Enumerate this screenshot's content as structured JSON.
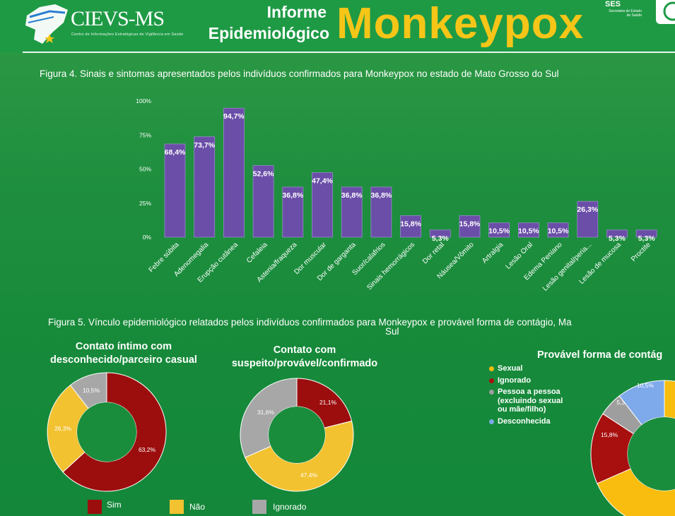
{
  "header": {
    "brand": "CIEVS-MS",
    "brand_subtitle": "Centro de Informações Estratégicas de Vigilância em Saúde",
    "informe_line1": "Informe",
    "informe_line2": "Epidemiológico",
    "title": "Monkeypox",
    "ses": "SES",
    "ses_line1": "Secretaria de Estado",
    "ses_line2": "de Saúde"
  },
  "figure4": {
    "caption": "Figura 4. Sinais e sintomas apresentados pelos indivíduos confirmados para  Monkeypox no estado de Mato Grosso do Sul"
  },
  "figure5": {
    "caption_line1": "Figura 5. Vínculo epidemiológico relatados  pelos indivíduos confirmados para Monkeypox e provável forma de contágio,  Ma",
    "caption_line2": "Sul",
    "panel1_title_line1": "Contato íntimo com",
    "panel1_title_line2": "desconhecido/parceiro casual",
    "panel2_title_line1": "Contato com",
    "panel2_title_line2": "suspeito/provável/confirmado",
    "panel3_title": "Provável forma de contág"
  },
  "colors": {
    "bar": "#6a4ea8",
    "sim": "#9c0e0e",
    "nao": "#f2c230",
    "ignorado": "#a7a7a7",
    "sexual": "#f8bd0e",
    "ignorado3": "#a80f0f",
    "pessoa": "#9e9e9e",
    "desconhecida": "#7ea9ea",
    "donut_hole": "#1a8d3d"
  },
  "chart_data": [
    {
      "type": "bar",
      "categories": [
        "Febre súbita",
        "Adenomegalia",
        "Erupção cutânea",
        "Cefaleia",
        "Astenia/fraqueza",
        "Dor muscular",
        "Dor de garganta",
        "Suor/calafrios",
        "Sinais hemorrágicos",
        "Dor retal",
        "Náusea/Vômito",
        "Artralgia",
        "Lesão Oral",
        "Edema Peniano",
        "Lesão genital/peria...",
        "Lesão de mucosa",
        "Proctite"
      ],
      "values": [
        68.4,
        73.7,
        94.7,
        52.6,
        36.8,
        47.4,
        36.8,
        36.8,
        15.8,
        5.3,
        15.8,
        10.5,
        10.5,
        10.5,
        26.3,
        5.3,
        5.3
      ],
      "value_labels": [
        "68,4%",
        "73,7%",
        "94,7%",
        "52,6%",
        "36,8%",
        "47,4%",
        "36,8%",
        "36,8%",
        "15,8%",
        "5,3%",
        "15,8%",
        "10,5%",
        "10,5%",
        "10,5%",
        "26,3%",
        "5,3%",
        "5,3%"
      ],
      "y_ticks": [
        "0%",
        "25%",
        "50%",
        "75%",
        "100%"
      ],
      "ylim": [
        0,
        100
      ]
    },
    {
      "type": "pie",
      "categories": [
        "Sim",
        "Não",
        "Ignorado"
      ],
      "values": [
        63.2,
        26.3,
        10.5
      ],
      "value_labels": [
        "63,2%",
        "26,3%",
        "10,5%"
      ]
    },
    {
      "type": "pie",
      "categories": [
        "Sim",
        "Não",
        "Ignorado"
      ],
      "values": [
        21.1,
        47.4,
        31.6
      ],
      "value_labels": [
        "21,1%",
        "47,4%",
        "31,6%"
      ]
    },
    {
      "type": "pie",
      "categories": [
        "Sexual",
        "Ignorado",
        "Pessoa a pessoa (excluindo sexual ou mãe/filho)",
        "Desconhecida"
      ],
      "values": [
        68.4,
        15.8,
        5.3,
        10.5
      ],
      "value_labels": [
        "",
        "15,8%",
        "5,3%",
        "10,5%"
      ]
    }
  ],
  "legend12": [
    "Sim",
    "Não",
    "Ignorado"
  ],
  "legend3": [
    "Sexual",
    "Ignorado",
    "Pessoa a pessoa",
    "(excluindo sexual",
    "ou mãe/filho)",
    "Desconhecida"
  ]
}
